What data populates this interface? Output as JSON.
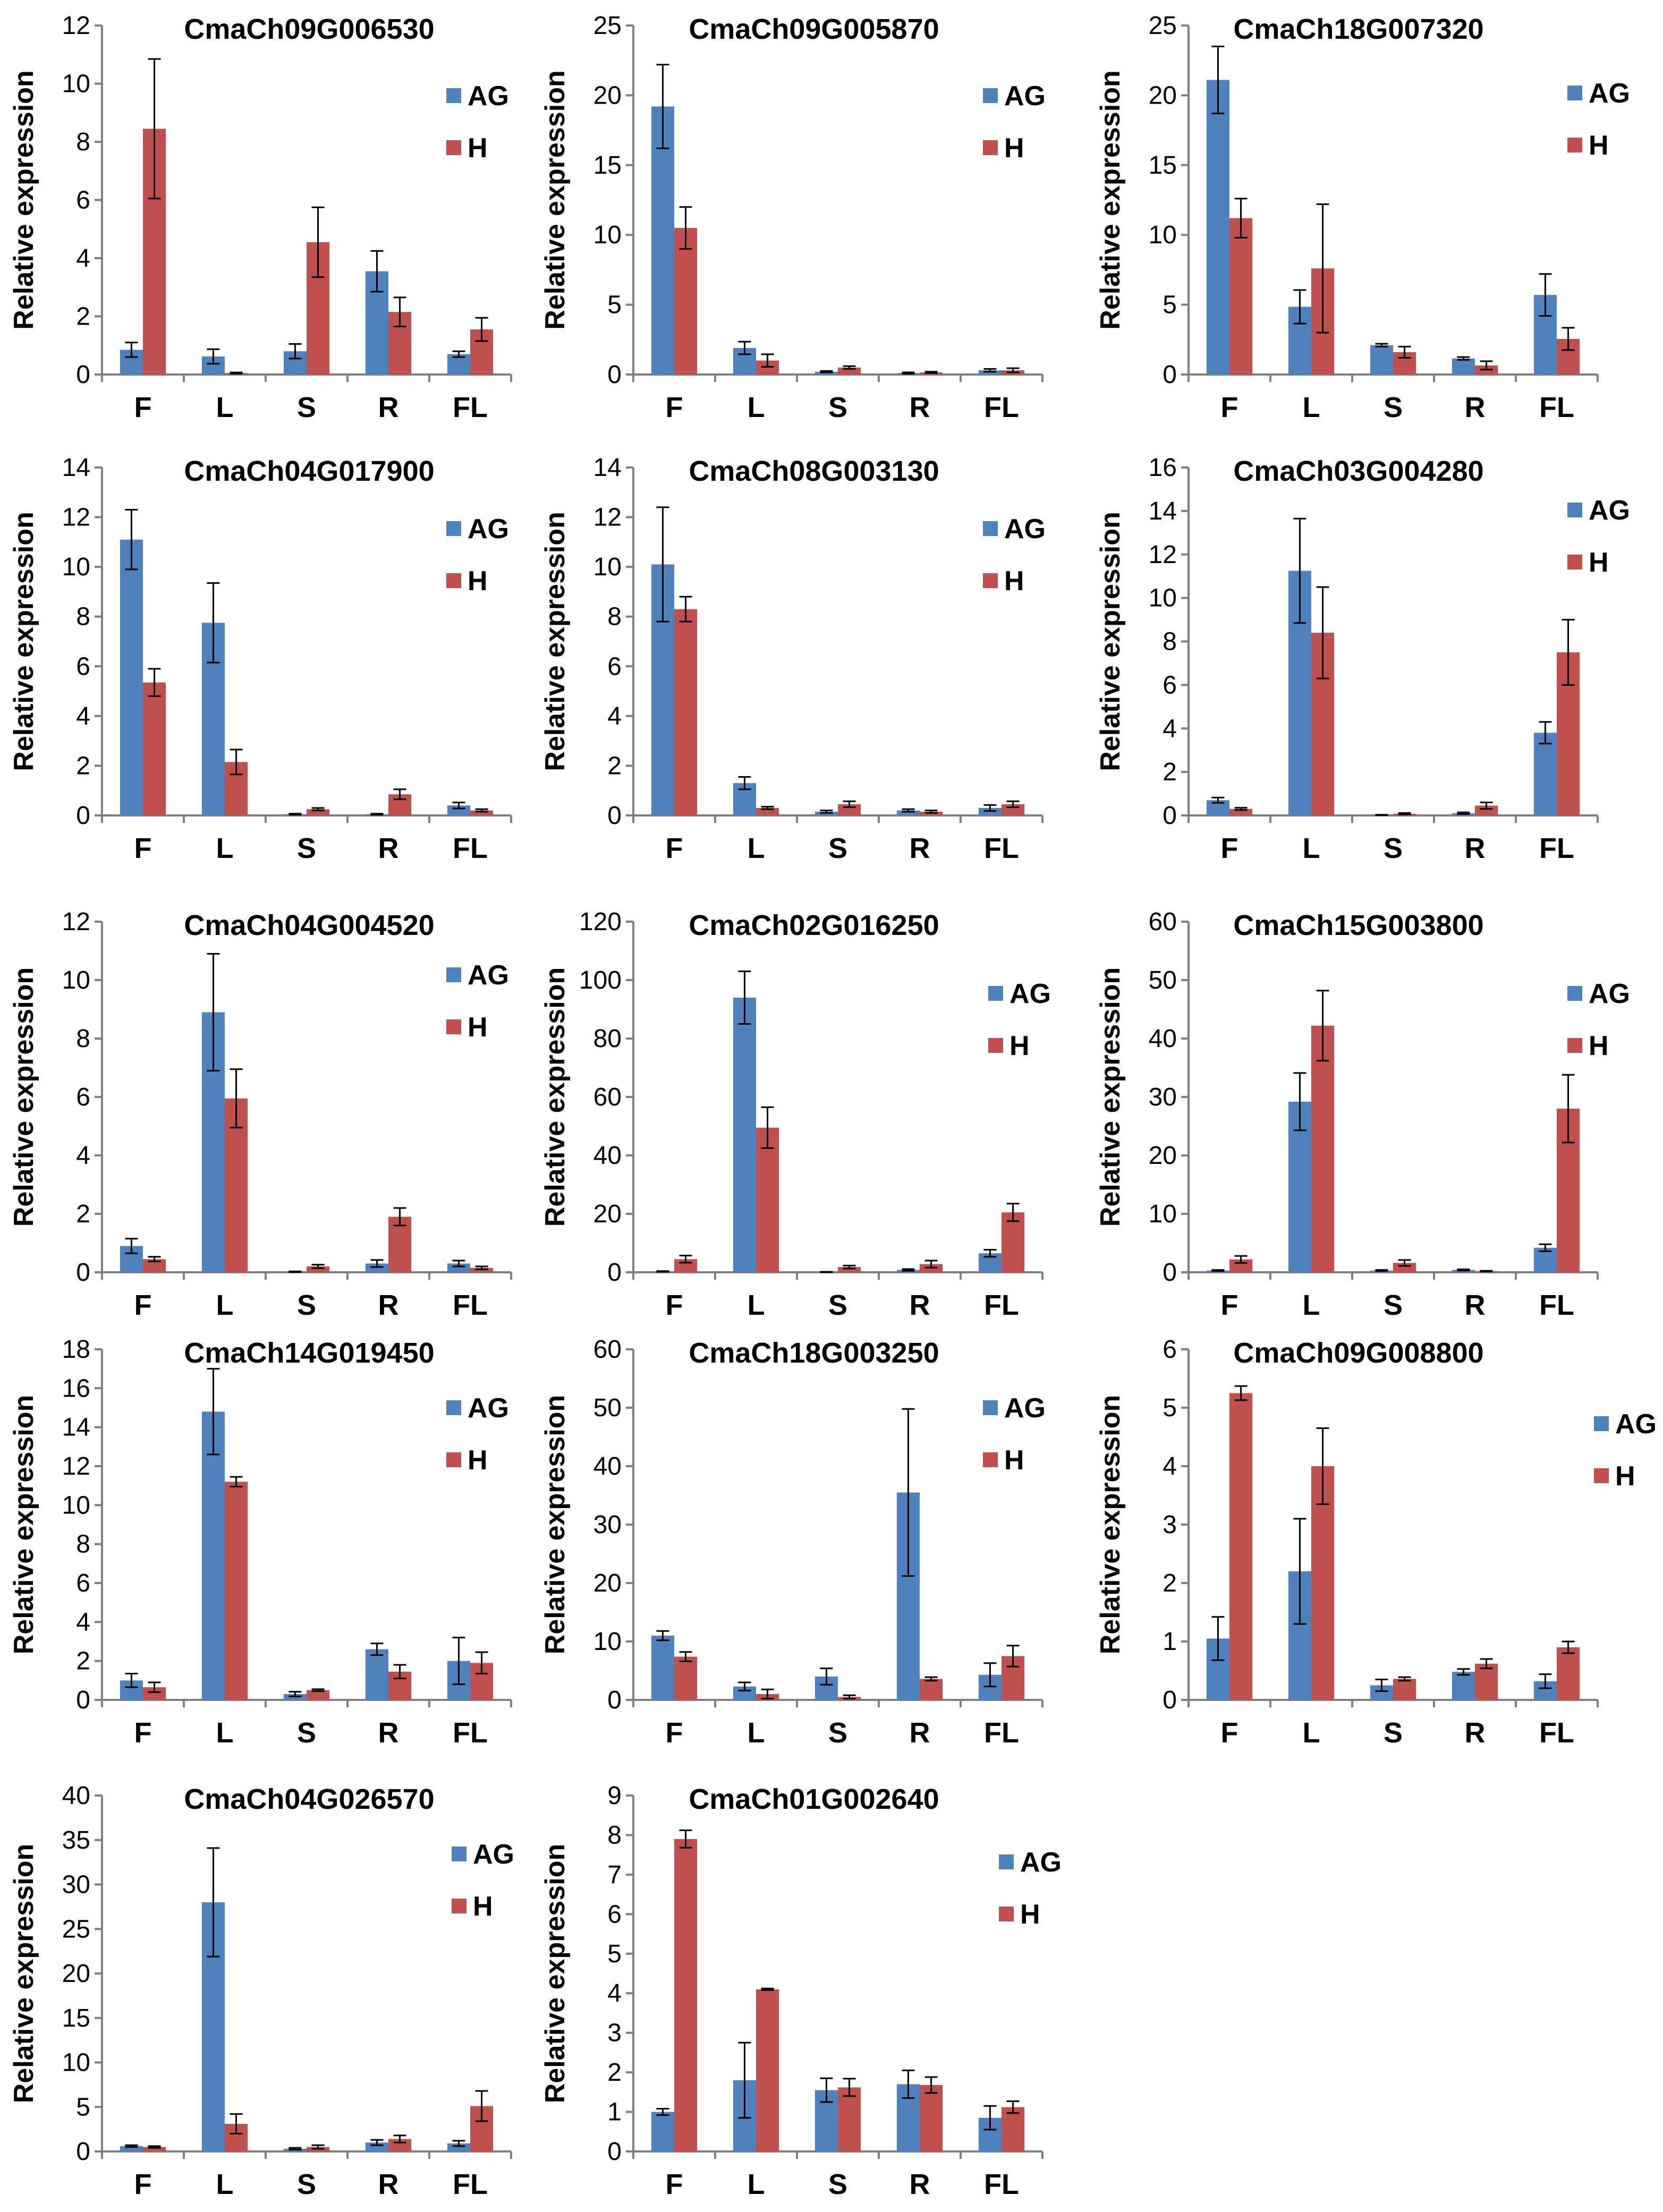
{
  "figure": {
    "legend": [
      "AG",
      "H"
    ],
    "colors": {
      "AG": "#4f81bd",
      "H": "#c0504d",
      "axis": "#7f7f7f",
      "errbar": "#000000"
    }
  },
  "chart_data": [
    {
      "type": "bar",
      "title": "CmaCh09G006530",
      "ylabel": "Relative expression",
      "categories": [
        "F",
        "L",
        "S",
        "R",
        "FL"
      ],
      "ylim": [
        0,
        12
      ],
      "yticks": [
        0,
        2,
        4,
        6,
        8,
        10,
        12
      ],
      "series": [
        {
          "name": "AG",
          "values": [
            0.85,
            0.62,
            0.8,
            3.55,
            0.7
          ],
          "errors": [
            0.25,
            0.25,
            0.25,
            0.7,
            0.1
          ]
        },
        {
          "name": "H",
          "values": [
            8.45,
            0.05,
            4.55,
            2.15,
            1.55
          ],
          "errors": [
            2.4,
            0.02,
            1.2,
            0.5,
            0.4
          ]
        }
      ]
    },
    {
      "type": "bar",
      "title": "CmaCh09G005870",
      "ylabel": "Relative expression",
      "categories": [
        "F",
        "L",
        "S",
        "R",
        "FL"
      ],
      "ylim": [
        0,
        25
      ],
      "yticks": [
        0,
        5,
        10,
        15,
        20,
        25
      ],
      "series": [
        {
          "name": "AG",
          "values": [
            19.2,
            1.9,
            0.2,
            0.1,
            0.3
          ],
          "errors": [
            3.0,
            0.45,
            0.05,
            0.05,
            0.1
          ]
        },
        {
          "name": "H",
          "values": [
            10.5,
            1.0,
            0.5,
            0.15,
            0.3
          ],
          "errors": [
            1.5,
            0.45,
            0.1,
            0.05,
            0.15
          ]
        }
      ]
    },
    {
      "type": "bar",
      "title": "CmaCh18G007320",
      "ylabel": "Relative expression",
      "categories": [
        "F",
        "L",
        "S",
        "R",
        "FL"
      ],
      "ylim": [
        0,
        25
      ],
      "yticks": [
        0,
        5,
        10,
        15,
        20,
        25
      ],
      "series": [
        {
          "name": "AG",
          "values": [
            21.1,
            4.85,
            2.1,
            1.15,
            5.7
          ],
          "errors": [
            2.4,
            1.2,
            0.1,
            0.1,
            1.5
          ]
        },
        {
          "name": "H",
          "values": [
            11.2,
            7.6,
            1.6,
            0.65,
            2.55
          ],
          "errors": [
            1.4,
            4.6,
            0.4,
            0.3,
            0.8
          ]
        }
      ]
    },
    {
      "type": "bar",
      "title": "CmaCh04G017900",
      "ylabel": "Relative expression",
      "categories": [
        "F",
        "L",
        "S",
        "R",
        "FL"
      ],
      "ylim": [
        0,
        14
      ],
      "yticks": [
        0,
        2,
        4,
        6,
        8,
        10,
        12,
        14
      ],
      "series": [
        {
          "name": "AG",
          "values": [
            11.1,
            7.75,
            0.05,
            0.05,
            0.4
          ],
          "errors": [
            1.2,
            1.6,
            0.02,
            0.02,
            0.12
          ]
        },
        {
          "name": "H",
          "values": [
            5.35,
            2.15,
            0.25,
            0.85,
            0.2
          ],
          "errors": [
            0.55,
            0.5,
            0.05,
            0.2,
            0.05
          ]
        }
      ]
    },
    {
      "type": "bar",
      "title": "CmaCh08G003130",
      "ylabel": "Relative expression",
      "categories": [
        "F",
        "L",
        "S",
        "R",
        "FL"
      ],
      "ylim": [
        0,
        14
      ],
      "yticks": [
        0,
        2,
        4,
        6,
        8,
        10,
        12,
        14
      ],
      "series": [
        {
          "name": "AG",
          "values": [
            10.1,
            1.3,
            0.15,
            0.2,
            0.3
          ],
          "errors": [
            2.3,
            0.25,
            0.05,
            0.05,
            0.12
          ]
        },
        {
          "name": "H",
          "values": [
            8.3,
            0.3,
            0.45,
            0.15,
            0.45
          ],
          "errors": [
            0.5,
            0.05,
            0.12,
            0.05,
            0.12
          ]
        }
      ]
    },
    {
      "type": "bar",
      "title": "CmaCh03G004280",
      "ylabel": "Relative expression",
      "categories": [
        "F",
        "L",
        "S",
        "R",
        "FL"
      ],
      "ylim": [
        0,
        16
      ],
      "yticks": [
        0,
        2,
        4,
        6,
        8,
        10,
        12,
        14,
        16
      ],
      "series": [
        {
          "name": "AG",
          "values": [
            0.7,
            11.25,
            0.02,
            0.1,
            3.8
          ],
          "errors": [
            0.12,
            2.4,
            0.01,
            0.04,
            0.5
          ]
        },
        {
          "name": "H",
          "values": [
            0.3,
            8.4,
            0.08,
            0.45,
            7.5
          ],
          "errors": [
            0.05,
            2.1,
            0.03,
            0.15,
            1.5
          ]
        }
      ]
    },
    {
      "type": "bar",
      "title": "CmaCh04G004520",
      "ylabel": "Relative expression",
      "categories": [
        "F",
        "L",
        "S",
        "R",
        "FL"
      ],
      "ylim": [
        0,
        12
      ],
      "yticks": [
        0,
        2,
        4,
        6,
        8,
        10,
        12
      ],
      "series": [
        {
          "name": "AG",
          "values": [
            0.9,
            8.9,
            0.02,
            0.3,
            0.3
          ],
          "errors": [
            0.25,
            2.0,
            0.01,
            0.12,
            0.1
          ]
        },
        {
          "name": "H",
          "values": [
            0.45,
            5.95,
            0.2,
            1.9,
            0.15
          ],
          "errors": [
            0.08,
            1.0,
            0.06,
            0.3,
            0.05
          ]
        }
      ]
    },
    {
      "type": "bar",
      "title": "CmaCh02G016250",
      "ylabel": "Relative expression",
      "categories": [
        "F",
        "L",
        "S",
        "R",
        "FL"
      ],
      "ylim": [
        0,
        120
      ],
      "yticks": [
        0,
        20,
        40,
        60,
        80,
        100,
        120
      ],
      "series": [
        {
          "name": "AG",
          "values": [
            0.3,
            94,
            0.1,
            0.8,
            6.5
          ],
          "errors": [
            0.1,
            9.0,
            0.05,
            0.3,
            1.2
          ]
        },
        {
          "name": "H",
          "values": [
            4.5,
            49.5,
            1.8,
            2.8,
            20.5
          ],
          "errors": [
            1.2,
            7.0,
            0.5,
            1.2,
            3.0
          ]
        }
      ]
    },
    {
      "type": "bar",
      "title": "CmaCh15G003800",
      "ylabel": "Relative expression",
      "categories": [
        "F",
        "L",
        "S",
        "R",
        "FL"
      ],
      "ylim": [
        0,
        60
      ],
      "yticks": [
        0,
        10,
        20,
        30,
        40,
        50,
        60
      ],
      "series": [
        {
          "name": "AG",
          "values": [
            0.3,
            29.2,
            0.3,
            0.4,
            4.2
          ],
          "errors": [
            0.1,
            4.9,
            0.1,
            0.1,
            0.6
          ]
        },
        {
          "name": "H",
          "values": [
            2.2,
            42.2,
            1.6,
            0.2,
            28
          ],
          "errors": [
            0.6,
            6.0,
            0.5,
            0.05,
            5.8
          ]
        }
      ]
    },
    {
      "type": "bar",
      "title": "CmaCh14G019450",
      "ylabel": "Relative expression",
      "categories": [
        "F",
        "L",
        "S",
        "R",
        "FL"
      ],
      "ylim": [
        0,
        18
      ],
      "yticks": [
        0,
        2,
        4,
        6,
        8,
        10,
        12,
        14,
        16,
        18
      ],
      "series": [
        {
          "name": "AG",
          "values": [
            1.0,
            14.8,
            0.3,
            2.6,
            2.0
          ],
          "errors": [
            0.35,
            2.2,
            0.12,
            0.3,
            1.2
          ]
        },
        {
          "name": "H",
          "values": [
            0.65,
            11.2,
            0.5,
            1.45,
            1.9
          ],
          "errors": [
            0.25,
            0.25,
            0.05,
            0.35,
            0.55
          ]
        }
      ]
    },
    {
      "type": "bar",
      "title": "CmaCh18G003250",
      "ylabel": "Relative expression",
      "categories": [
        "F",
        "L",
        "S",
        "R",
        "FL"
      ],
      "ylim": [
        0,
        60
      ],
      "yticks": [
        0,
        10,
        20,
        30,
        40,
        50,
        60
      ],
      "series": [
        {
          "name": "AG",
          "values": [
            11,
            2.3,
            4.0,
            35.5,
            4.3
          ],
          "errors": [
            0.8,
            0.7,
            1.4,
            14.3,
            2.0
          ]
        },
        {
          "name": "H",
          "values": [
            7.4,
            1.0,
            0.5,
            3.6,
            7.5
          ],
          "errors": [
            0.8,
            0.8,
            0.3,
            0.3,
            1.8
          ]
        }
      ]
    },
    {
      "type": "bar",
      "title": "CmaCh09G008800",
      "ylabel": "Relative expression",
      "categories": [
        "F",
        "L",
        "S",
        "R",
        "FL"
      ],
      "ylim": [
        0,
        6
      ],
      "yticks": [
        0,
        1,
        2,
        3,
        4,
        5,
        6
      ],
      "series": [
        {
          "name": "AG",
          "values": [
            1.05,
            2.2,
            0.25,
            0.48,
            0.32
          ],
          "errors": [
            0.37,
            0.9,
            0.1,
            0.05,
            0.12
          ]
        },
        {
          "name": "H",
          "values": [
            5.25,
            4.0,
            0.36,
            0.62,
            0.9
          ],
          "errors": [
            0.12,
            0.65,
            0.03,
            0.08,
            0.1
          ]
        }
      ]
    },
    {
      "type": "bar",
      "title": "CmaCh04G026570",
      "ylabel": "Relative expression",
      "categories": [
        "F",
        "L",
        "S",
        "R",
        "FL"
      ],
      "ylim": [
        0,
        40
      ],
      "yticks": [
        0,
        5,
        10,
        15,
        20,
        25,
        30,
        35,
        40
      ],
      "series": [
        {
          "name": "AG",
          "values": [
            0.6,
            28,
            0.3,
            1.0,
            0.9
          ],
          "errors": [
            0.1,
            6.1,
            0.1,
            0.3,
            0.3
          ]
        },
        {
          "name": "H",
          "values": [
            0.5,
            3.1,
            0.5,
            1.4,
            5.1
          ],
          "errors": [
            0.1,
            1.1,
            0.2,
            0.4,
            1.7
          ]
        }
      ]
    },
    {
      "type": "bar",
      "title": "CmaCh01G002640",
      "ylabel": "Relative expression",
      "categories": [
        "F",
        "L",
        "S",
        "R",
        "FL"
      ],
      "ylim": [
        0,
        9
      ],
      "yticks": [
        0,
        1,
        2,
        3,
        4,
        5,
        6,
        7,
        8,
        9
      ],
      "series": [
        {
          "name": "AG",
          "values": [
            1.0,
            1.8,
            1.55,
            1.7,
            0.85
          ],
          "errors": [
            0.08,
            0.95,
            0.3,
            0.35,
            0.3
          ]
        },
        {
          "name": "H",
          "values": [
            7.9,
            4.1,
            1.62,
            1.68,
            1.12
          ],
          "errors": [
            0.22,
            0.02,
            0.22,
            0.2,
            0.15
          ]
        }
      ]
    }
  ]
}
